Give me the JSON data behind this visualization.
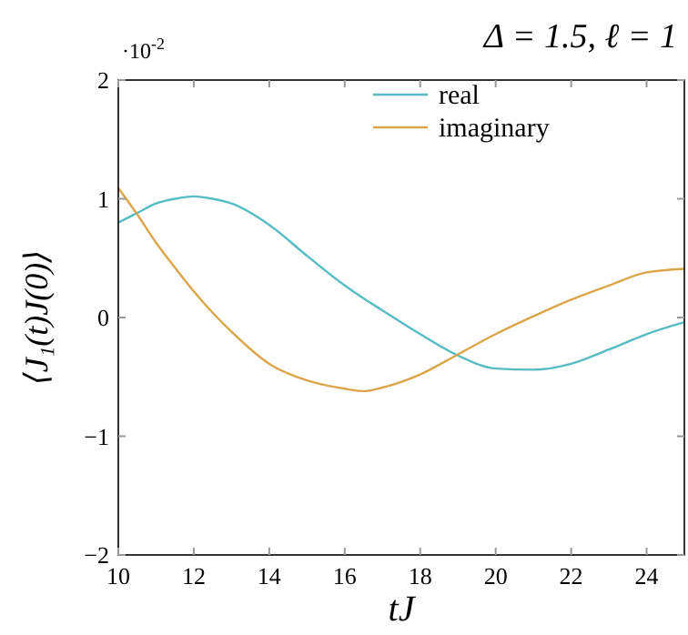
{
  "chart_data": {
    "type": "line",
    "title": "Δ = 1.5, ℓ = 1",
    "xlabel": "tJ",
    "ylabel": "⟨J₁(t)J(0)⟩",
    "annotations": [
      "·10$^{-2}$"
    ],
    "x": [
      10,
      10.5,
      11,
      11.5,
      12,
      12.5,
      13,
      14,
      15,
      16,
      16.5,
      17,
      18,
      19,
      20,
      21,
      22,
      23,
      24,
      25
    ],
    "series": [
      {
        "name": "real",
        "color": "#56bcc4",
        "values": [
          0.8,
          0.88,
          0.96,
          1.0,
          1.02,
          1.0,
          0.96,
          0.78,
          0.52,
          0.27,
          0.16,
          0.06,
          -0.14,
          -0.32,
          -0.43,
          -0.44,
          -0.39,
          -0.27,
          -0.14,
          -0.04
        ]
      },
      {
        "name": "imaginary",
        "color": "#dba64a",
        "values": [
          1.09,
          0.87,
          0.63,
          0.42,
          0.22,
          0.04,
          -0.12,
          -0.39,
          -0.53,
          -0.6,
          -0.62,
          -0.59,
          -0.48,
          -0.31,
          -0.14,
          0.01,
          0.15,
          0.27,
          0.38,
          0.41
        ]
      }
    ],
    "xlim": [
      10,
      25
    ],
    "xticks": [
      10,
      12,
      14,
      16,
      18,
      20,
      22,
      24
    ],
    "ylim": [
      -2,
      2
    ],
    "yticks": [
      -2,
      -1,
      0,
      1,
      2
    ],
    "legend": "top right"
  }
}
